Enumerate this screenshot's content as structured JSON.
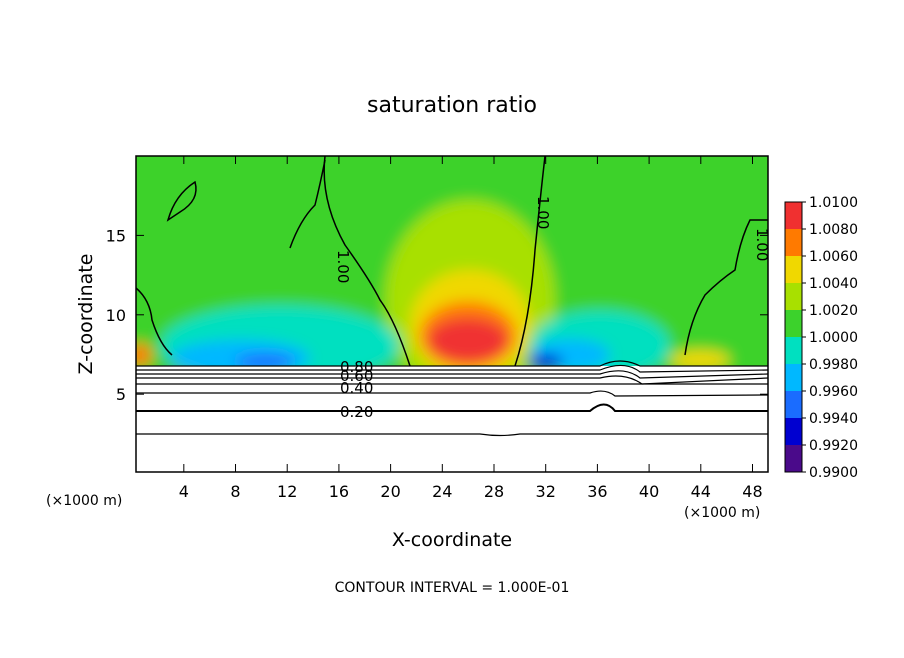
{
  "chart_data": {
    "type": "contour",
    "title": "saturation ratio",
    "x_label": "X-coordinate",
    "y_label": "Z-coordinate",
    "x_unit": "(×1000 m)",
    "x_unit_right": "(×1000 m)",
    "footer": "CONTOUR INTERVAL = 1.000E-01",
    "xlim": [
      0.3,
      49.2
    ],
    "ylim": [
      0.1,
      20
    ],
    "xticks": [
      4,
      8,
      12,
      16,
      20,
      24,
      28,
      32,
      36,
      40,
      44,
      48
    ],
    "yticks": [
      5,
      10,
      15
    ],
    "contour_labels": [
      "0.80",
      "0.60",
      "0.40",
      "0.20",
      "1.00",
      "1.00",
      "1.00"
    ],
    "colorbar": {
      "ticks": [
        {
          "value": 0.99,
          "label": "0.9900"
        },
        {
          "value": 0.992,
          "label": "0.9920"
        },
        {
          "value": 0.994,
          "label": "0.9940"
        },
        {
          "value": 0.996,
          "label": "0.9960"
        },
        {
          "value": 0.998,
          "label": "0.9980"
        },
        {
          "value": 1.0,
          "label": "1.0000"
        },
        {
          "value": 1.002,
          "label": "1.0020"
        },
        {
          "value": 1.004,
          "label": "1.0040"
        },
        {
          "value": 1.006,
          "label": "1.0060"
        },
        {
          "value": 1.008,
          "label": "1.0080"
        },
        {
          "value": 1.01,
          "label": "1.0100"
        }
      ],
      "colors": [
        "#4a0a8a",
        "#0000d0",
        "#1a6cff",
        "#00b8ff",
        "#00e0c0",
        "#3cd22c",
        "#a8e000",
        "#f0d800",
        "#ff7a00",
        "#f03030"
      ]
    }
  }
}
